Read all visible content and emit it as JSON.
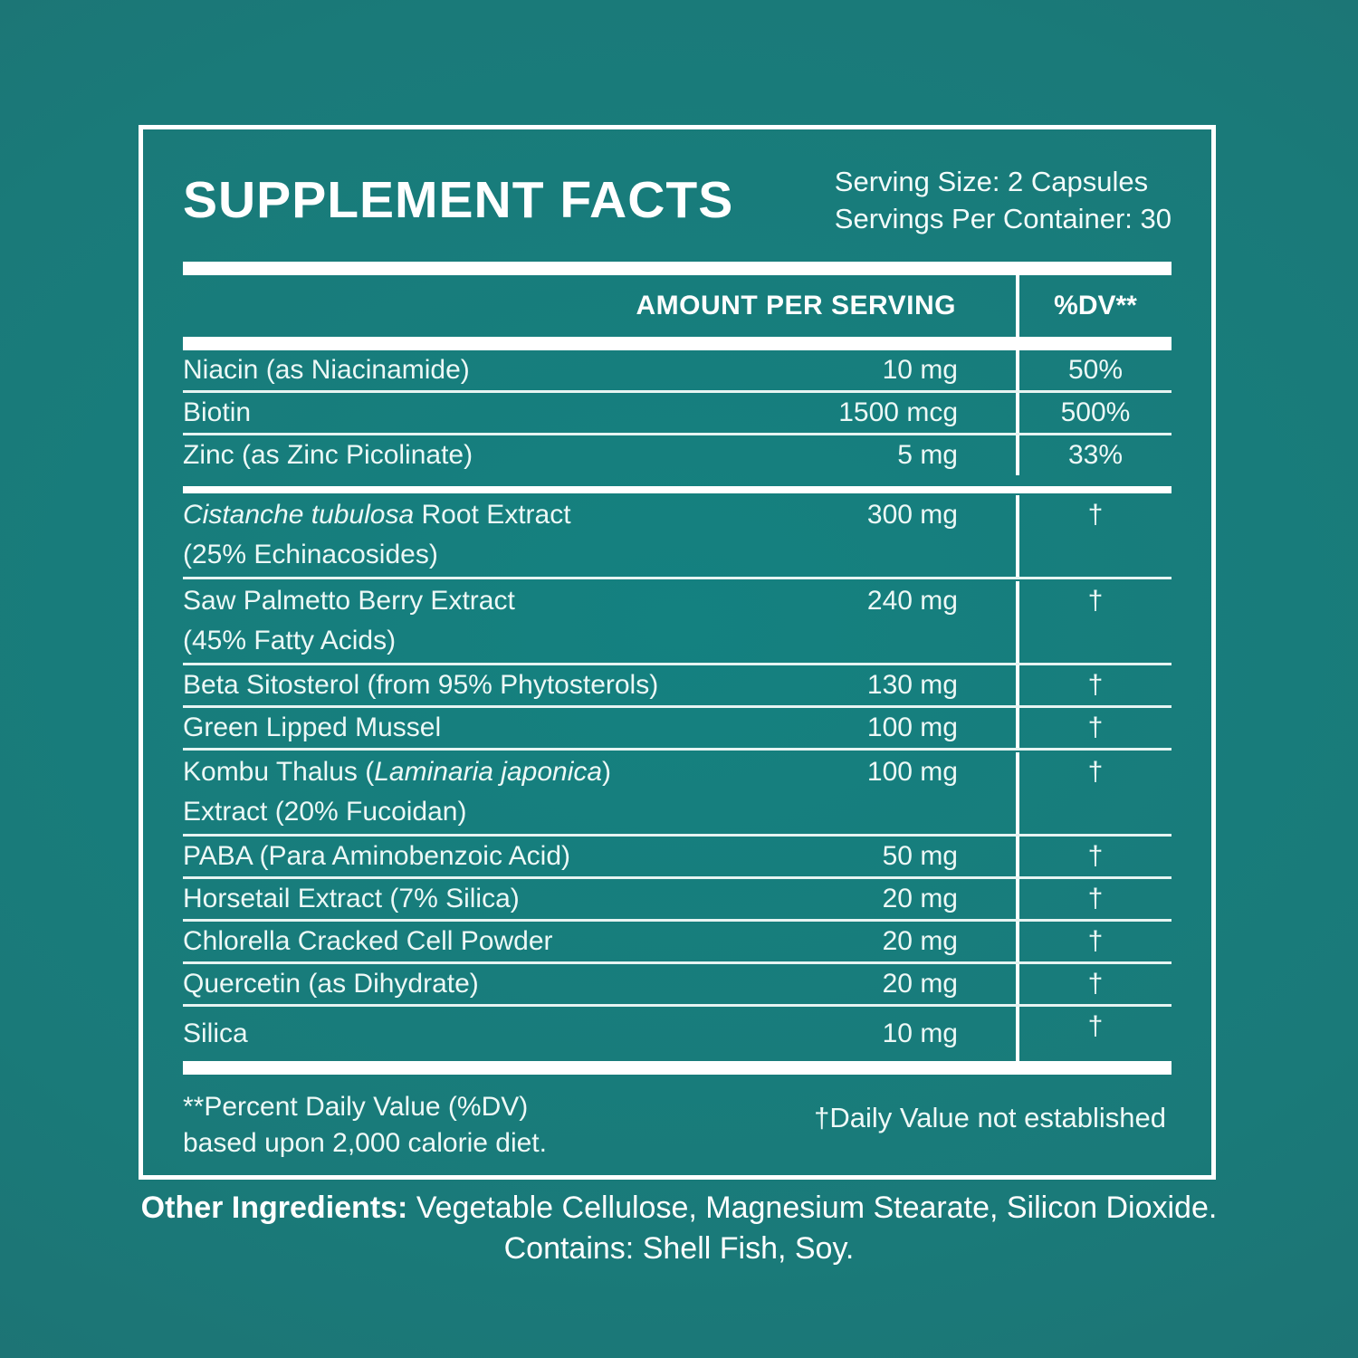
{
  "colors": {
    "background_center": "#148180",
    "background_edge": "#206e70",
    "panel_border": "#ffffff",
    "bar": "#ffffff",
    "text": "#ecf8f6"
  },
  "header": {
    "title": "SUPPLEMENT FACTS",
    "serving_size": "Serving Size: 2 Capsules",
    "servings_per_container": "Servings Per Container: 30"
  },
  "table": {
    "columns": {
      "amount": "AMOUNT PER SERVING",
      "dv": "%DV**"
    },
    "vitamins": [
      {
        "line1": [
          {
            "text": "Niacin (as Niacinamide)",
            "italic": false
          }
        ],
        "line2": null,
        "amount": "10 mg",
        "dv": "50%"
      },
      {
        "line1": [
          {
            "text": "Biotin",
            "italic": false
          }
        ],
        "line2": null,
        "amount": "1500 mcg",
        "dv": "500%"
      },
      {
        "line1": [
          {
            "text": "Zinc (as Zinc Picolinate)",
            "italic": false
          }
        ],
        "line2": null,
        "amount": "5 mg",
        "dv": "33%"
      }
    ],
    "extracts": [
      {
        "line1": [
          {
            "text": "Cistanche tubulosa",
            "italic": true
          },
          {
            "text": " Root Extract",
            "italic": false
          }
        ],
        "line2": "(25% Echinacosides)",
        "amount": "300 mg",
        "dv": "†"
      },
      {
        "line1": [
          {
            "text": "Saw Palmetto Berry Extract",
            "italic": false
          }
        ],
        "line2": "(45% Fatty Acids)",
        "amount": "240 mg",
        "dv": "†"
      },
      {
        "line1": [
          {
            "text": "Beta Sitosterol (from 95% Phytosterols)",
            "italic": false
          }
        ],
        "line2": null,
        "amount": "130 mg",
        "dv": "†"
      },
      {
        "line1": [
          {
            "text": "Green Lipped Mussel",
            "italic": false
          }
        ],
        "line2": null,
        "amount": "100 mg",
        "dv": "†"
      },
      {
        "line1": [
          {
            "text": "Kombu Thalus (",
            "italic": false
          },
          {
            "text": "Laminaria japonica",
            "italic": true
          },
          {
            "text": ")",
            "italic": false
          }
        ],
        "line2": "Extract (20% Fucoidan)",
        "amount": "100 mg",
        "dv": "†"
      },
      {
        "line1": [
          {
            "text": "PABA (Para Aminobenzoic Acid)",
            "italic": false
          }
        ],
        "line2": null,
        "amount": "50 mg",
        "dv": "†"
      },
      {
        "line1": [
          {
            "text": "Horsetail Extract (7% Silica)",
            "italic": false
          }
        ],
        "line2": null,
        "amount": "20 mg",
        "dv": "†"
      },
      {
        "line1": [
          {
            "text": "Chlorella Cracked Cell Powder",
            "italic": false
          }
        ],
        "line2": null,
        "amount": "20 mg",
        "dv": "†"
      },
      {
        "line1": [
          {
            "text": "Quercetin (as Dihydrate)",
            "italic": false
          }
        ],
        "line2": null,
        "amount": "20 mg",
        "dv": "†"
      },
      {
        "line1": [
          {
            "text": "Silica",
            "italic": false
          }
        ],
        "line2": null,
        "amount": "10 mg",
        "dv": "†"
      }
    ]
  },
  "footnotes": {
    "dv_note_line1": "**Percent Daily Value (%DV)",
    "dv_note_line2": "based upon 2,000 calorie diet.",
    "dagger_note": "†Daily Value not established"
  },
  "other_ingredients": {
    "label": "Other Ingredients:",
    "text": " Vegetable Cellulose, Magnesium Stearate, Silicon Dioxide.",
    "contains": "Contains: Shell Fish, Soy."
  }
}
